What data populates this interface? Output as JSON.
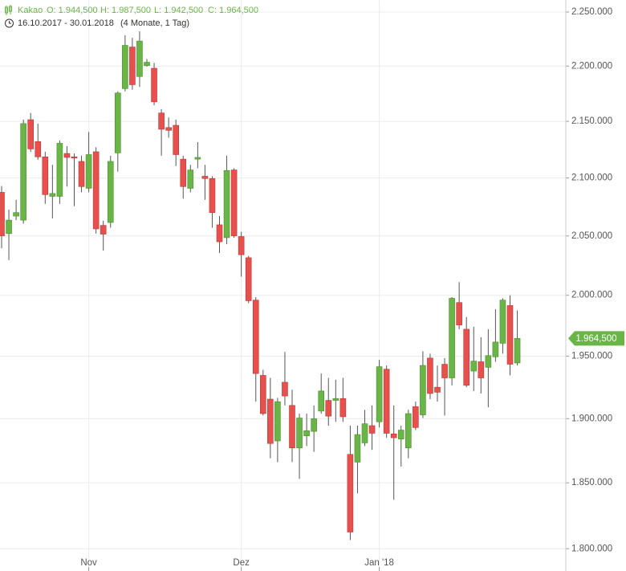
{
  "chart_data": {
    "type": "candlestick",
    "title": "Kakao",
    "header": {
      "open": "O: 1.944,500",
      "high": "H: 1.987,500",
      "low": "L: 1.942,500",
      "close": "C: 1.964,500"
    },
    "date_range": "16.10.2017 - 30.01.2018",
    "duration": "(4 Monate, 1 Tag)",
    "last_price_label": "1.964,500",
    "log_scale": true,
    "grid": true,
    "up_color": "#6ab547",
    "down_color": "#e8504e",
    "categories": [
      null,
      null,
      null,
      null,
      null,
      null,
      null,
      null,
      null,
      null,
      null,
      null,
      "Nov",
      null,
      null,
      null,
      null,
      null,
      null,
      null,
      null,
      null,
      null,
      null,
      null,
      null,
      null,
      null,
      null,
      null,
      null,
      null,
      null,
      "Dez",
      null,
      null,
      null,
      null,
      null,
      null,
      null,
      null,
      null,
      null,
      null,
      null,
      null,
      null,
      null,
      null,
      null,
      null,
      "Jan '18",
      null,
      null,
      null,
      null,
      null,
      null,
      null,
      null,
      null,
      null,
      null,
      null,
      null,
      null,
      null,
      null,
      null,
      null,
      null
    ],
    "open": [
      2087500,
      2052000,
      2067000,
      2063500,
      2151500,
      2132000,
      2118500,
      2084000,
      2084000,
      2121500,
      2118500,
      2114500,
      2091000,
      2123000,
      2059000,
      2061500,
      2122000,
      2179500,
      2217500,
      2190500,
      2200500,
      2198000,
      2157500,
      2144500,
      2146500,
      2116500,
      2091000,
      2116500,
      2101500,
      2099500,
      2059500,
      2048500,
      2107000,
      2049500,
      2031500,
      1996000,
      1934500,
      1915500,
      1882500,
      1929000,
      1910500,
      1877000,
      1886500,
      1890000,
      1906000,
      1914500,
      1914500,
      1916000,
      1872000,
      1866000,
      1881000,
      1894500,
      1897500,
      1939500,
      1888000,
      1884000,
      1877000,
      1909500,
      1903000,
      1948500,
      1925000,
      1943500,
      1932500,
      1994000,
      1972000,
      1938000,
      1945500,
      1941000,
      1949500,
      1960500,
      1991500,
      1944500
    ],
    "high": [
      2093000,
      2072500,
      2081000,
      2151500,
      2157500,
      2148000,
      2123000,
      2111500,
      2133000,
      2128000,
      2121500,
      2119500,
      2140500,
      2127000,
      2063000,
      2119500,
      2177000,
      2228500,
      2226000,
      2232000,
      2206500,
      2203000,
      2161000,
      2153500,
      2151500,
      2119500,
      2111500,
      2131500,
      2111500,
      2101500,
      2067000,
      2119500,
      2108500,
      2053500,
      2033000,
      1998500,
      1939000,
      1932500,
      1916500,
      1953500,
      1923000,
      1904000,
      1904000,
      1910500,
      1936000,
      1932500,
      1931000,
      1932500,
      1894500,
      1894500,
      1907000,
      1910500,
      1947000,
      1942500,
      1910500,
      1894500,
      1907000,
      1913500,
      1954000,
      1952000,
      1942500,
      1948500,
      1998500,
      2011000,
      1982000,
      1974000,
      1965500,
      1972000,
      1988500,
      1997500,
      2000000,
      1987500
    ],
    "low": [
      2039500,
      2029500,
      2063500,
      2060500,
      2123000,
      2116000,
      2077500,
      2065000,
      2077500,
      2092500,
      2075500,
      2087500,
      2087500,
      2052000,
      2037500,
      2057000,
      2105500,
      2177000,
      2178500,
      2181000,
      2199500,
      2164500,
      2119500,
      2135500,
      2110500,
      2082000,
      2087500,
      2108500,
      2081000,
      2057000,
      2035500,
      2043000,
      2048500,
      2015500,
      1993500,
      1913500,
      1902500,
      1869000,
      1866000,
      1910500,
      1866000,
      1853000,
      1878500,
      1874000,
      1904000,
      1894500,
      1897500,
      1897500,
      1806500,
      1842000,
      1878500,
      1875500,
      1893000,
      1885000,
      1837000,
      1862500,
      1869000,
      1891000,
      1900500,
      1915500,
      1913500,
      1902500,
      1926500,
      1972000,
      1925000,
      1922000,
      1920000,
      1909000,
      1945500,
      1952000,
      1934500,
      1942500
    ],
    "close": [
      2050000,
      2063500,
      2070000,
      2148000,
      2125500,
      2118500,
      2085500,
      2086500,
      2130500,
      2118000,
      2118000,
      2092500,
      2120500,
      2056000,
      2051500,
      2114500,
      2175500,
      2219000,
      2183000,
      2223000,
      2203500,
      2167500,
      2143000,
      2142000,
      2120500,
      2092500,
      2107000,
      2118000,
      2099500,
      2070000,
      2045000,
      2106500,
      2050000,
      2034000,
      1995500,
      1936000,
      1904000,
      1880500,
      1913500,
      1918000,
      1877000,
      1900500,
      1890500,
      1900000,
      1922000,
      1902000,
      1916000,
      1901500,
      1812500,
      1887500,
      1896000,
      1888500,
      1941500,
      1888500,
      1885000,
      1891000,
      1904000,
      1893000,
      1942500,
      1920000,
      1921000,
      1932500,
      1997500,
      1975500,
      1926500,
      1946000,
      1932500,
      1950500,
      1961500,
      1996000,
      1943500,
      1964500
    ],
    "ylim": [
      1785000,
      2260000
    ],
    "yticks": [
      {
        "value": 1800000,
        "label": "1.800.000"
      },
      {
        "value": 1850000,
        "label": "1.850.000"
      },
      {
        "value": 1900000,
        "label": "1.900.000"
      },
      {
        "value": 1950000,
        "label": "1.950.000"
      },
      {
        "value": 2000000,
        "label": "2.000.000"
      },
      {
        "value": 2050000,
        "label": "2.050.000"
      },
      {
        "value": 2100000,
        "label": "2.100.000"
      },
      {
        "value": 2150000,
        "label": "2.150.000"
      },
      {
        "value": 2200000,
        "label": "2.200.000"
      },
      {
        "value": 2250000,
        "label": "2.250.000"
      }
    ]
  }
}
